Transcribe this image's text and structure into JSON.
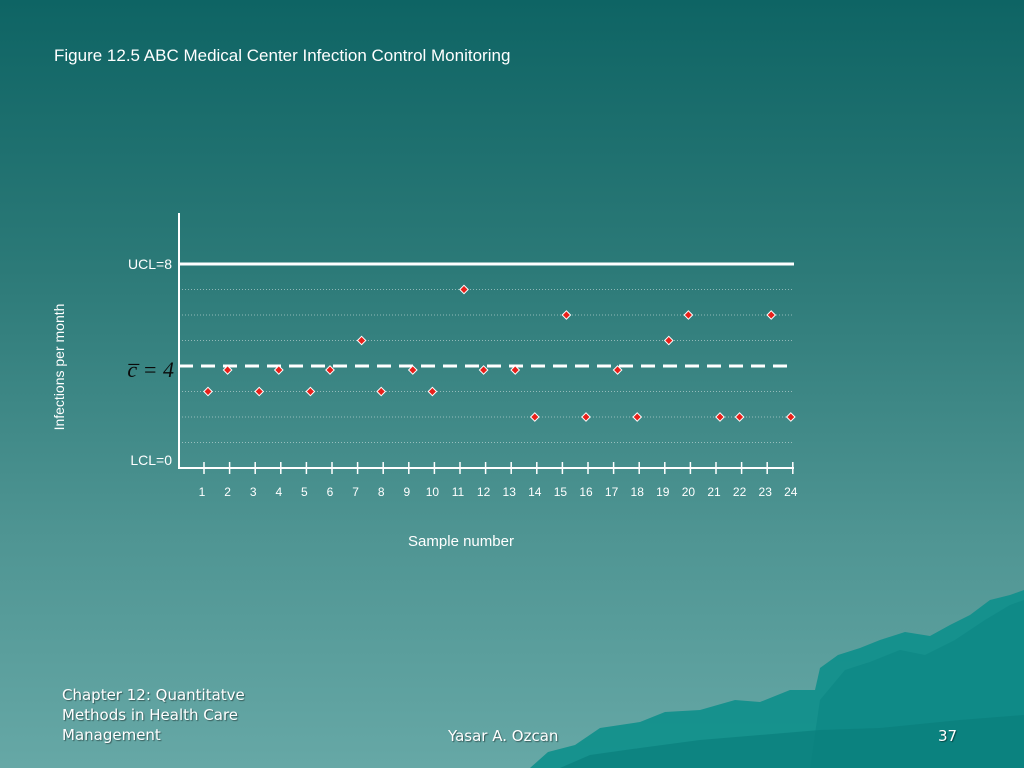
{
  "slide": {
    "title": "Figure 12.5 ABC Medical Center Infection Control Monitoring",
    "footer_chapter": "Chapter 12: Quantitatve Methods in Health Care Management",
    "footer_author": "Yasar A. Ozcan",
    "page_number": "37"
  },
  "colors": {
    "marker": "#e8201a",
    "line": "#ffffff"
  },
  "chart_data": {
    "type": "scatter",
    "title": "",
    "xlabel": "Sample number",
    "ylabel": "Infections per month",
    "categories": [
      "1",
      "2",
      "3",
      "4",
      "5",
      "6",
      "7",
      "8",
      "9",
      "10",
      "11",
      "12",
      "13",
      "14",
      "15",
      "16",
      "17",
      "18",
      "19",
      "20",
      "21",
      "22",
      "23",
      "24"
    ],
    "series": [
      {
        "values": [
          3,
          4,
          3,
          4,
          3,
          4,
          5,
          3,
          4,
          3,
          7,
          4,
          4,
          2,
          6,
          2,
          4,
          2,
          5,
          6,
          2,
          2,
          6,
          2
        ]
      }
    ],
    "ylim": [
      0,
      8
    ],
    "ucl": {
      "value": 8,
      "label": "UCL=8"
    },
    "center_line": {
      "value": 4,
      "label": "c̅ = 4"
    },
    "lcl": {
      "value": 0,
      "label": "LCL=0"
    },
    "grid": true
  }
}
